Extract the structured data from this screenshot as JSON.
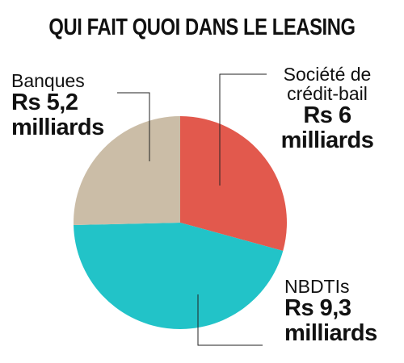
{
  "chart_data": {
    "type": "pie",
    "title": "QUI FAIT QUOI DANS LE LEASING",
    "categories": [
      "Société de crédit-bail",
      "NBDTIs",
      "Banques"
    ],
    "values": [
      6,
      9.3,
      5.2
    ],
    "value_labels": [
      "Rs 6 milliards",
      "Rs 9,3 milliards",
      "Rs 5,2 milliards"
    ],
    "colors": [
      "#e2594d",
      "#22c3c8",
      "#cbbda7"
    ]
  }
}
